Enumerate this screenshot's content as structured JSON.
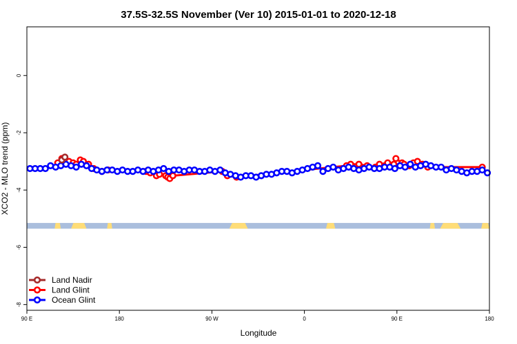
{
  "chart_data": {
    "type": "line",
    "title": "37.5S-32.5S November (Ver 10)   2015-01-01 to 2020-12-18",
    "xlabel": "Longitude",
    "ylabel": "XCO2 - MLO trend (ppm)",
    "xlim": [
      90,
      540
    ],
    "ylim": [
      -8.2,
      1.7
    ],
    "x_ticks": [
      {
        "value": 90,
        "label": "90 E"
      },
      {
        "value": 180,
        "label": "180"
      },
      {
        "value": 270,
        "label": "90 W"
      },
      {
        "value": 360,
        "label": "0"
      },
      {
        "value": 450,
        "label": "90 E"
      },
      {
        "value": 540,
        "label": "180"
      }
    ],
    "y_ticks": [
      {
        "value": 0,
        "label": "0"
      },
      {
        "value": -2,
        "label": "-2"
      },
      {
        "value": -4,
        "label": "-4"
      },
      {
        "value": -6,
        "label": "-6"
      },
      {
        "value": -8,
        "label": "-8"
      }
    ],
    "grid": false,
    "legend_position": "bottom-left",
    "series": [
      {
        "name": "Land Nadir",
        "color": "#a52a2a",
        "x": [
          124,
          127
        ],
        "y": [
          -2.95,
          -2.85
        ]
      },
      {
        "name": "Land Glint",
        "color": "#ff0000",
        "x": [
          120,
          124,
          127,
          131,
          135,
          138,
          142,
          145,
          150,
          155,
          163,
          169,
          206,
          210,
          216,
          219,
          225,
          227,
          229,
          232,
          280,
          285,
          294,
          401,
          405,
          413,
          421,
          429,
          433,
          441,
          447,
          449,
          455,
          457,
          462,
          466,
          470,
          475,
          480,
          533
        ],
        "y": [
          -3.05,
          -2.9,
          -2.95,
          -3.0,
          -3.05,
          -3.1,
          -2.95,
          -3.0,
          -3.1,
          -3.25,
          -3.35,
          -3.3,
          -3.35,
          -3.4,
          -3.5,
          -3.45,
          -3.5,
          -3.55,
          -3.6,
          -3.5,
          -3.35,
          -3.5,
          -3.55,
          -3.15,
          -3.1,
          -3.1,
          -3.15,
          -3.2,
          -3.1,
          -3.05,
          -3.1,
          -2.9,
          -3.05,
          -3.1,
          -3.15,
          -3.05,
          -3.0,
          -3.1,
          -3.2,
          -3.2
        ]
      },
      {
        "name": "Ocean Glint",
        "color": "#0000ff",
        "x": [
          93,
          98,
          103,
          108,
          113,
          118,
          123,
          128,
          133,
          138,
          143,
          148,
          153,
          158,
          163,
          168,
          173,
          178,
          183,
          188,
          193,
          198,
          203,
          208,
          213,
          218,
          223,
          228,
          233,
          238,
          243,
          248,
          253,
          258,
          263,
          268,
          273,
          278,
          283,
          288,
          293,
          298,
          303,
          308,
          313,
          318,
          323,
          328,
          333,
          338,
          343,
          348,
          353,
          358,
          363,
          368,
          373,
          378,
          383,
          388,
          393,
          398,
          403,
          408,
          413,
          418,
          423,
          428,
          433,
          438,
          443,
          448,
          453,
          458,
          463,
          468,
          473,
          478,
          483,
          488,
          493,
          498,
          503,
          508,
          513,
          518,
          523,
          528,
          533,
          538
        ],
        "y": [
          -3.25,
          -3.25,
          -3.25,
          -3.25,
          -3.15,
          -3.2,
          -3.15,
          -3.1,
          -3.15,
          -3.2,
          -3.1,
          -3.15,
          -3.25,
          -3.3,
          -3.35,
          -3.3,
          -3.3,
          -3.35,
          -3.3,
          -3.35,
          -3.35,
          -3.3,
          -3.35,
          -3.3,
          -3.35,
          -3.3,
          -3.25,
          -3.35,
          -3.3,
          -3.3,
          -3.35,
          -3.3,
          -3.3,
          -3.35,
          -3.35,
          -3.3,
          -3.35,
          -3.3,
          -3.4,
          -3.45,
          -3.5,
          -3.55,
          -3.5,
          -3.5,
          -3.55,
          -3.5,
          -3.45,
          -3.45,
          -3.4,
          -3.35,
          -3.35,
          -3.4,
          -3.35,
          -3.3,
          -3.25,
          -3.2,
          -3.15,
          -3.35,
          -3.25,
          -3.2,
          -3.3,
          -3.25,
          -3.2,
          -3.25,
          -3.3,
          -3.25,
          -3.2,
          -3.25,
          -3.25,
          -3.2,
          -3.2,
          -3.25,
          -3.15,
          -3.2,
          -3.1,
          -3.2,
          -3.15,
          -3.1,
          -3.15,
          -3.2,
          -3.2,
          -3.3,
          -3.25,
          -3.3,
          -3.35,
          -3.4,
          -3.35,
          -3.35,
          -3.3,
          -3.4
        ]
      }
    ],
    "map_strip": {
      "y_top": -5.15,
      "y_bottom": -5.35,
      "ocean_color": "#aabedd",
      "land_color": "#ffdd77",
      "land_segments": [
        [
          117,
          123
        ],
        [
          133,
          148
        ],
        [
          168,
          173
        ],
        [
          287,
          305
        ],
        [
          381,
          390
        ],
        [
          482,
          487
        ],
        [
          492,
          512
        ],
        [
          532,
          540
        ]
      ]
    }
  }
}
